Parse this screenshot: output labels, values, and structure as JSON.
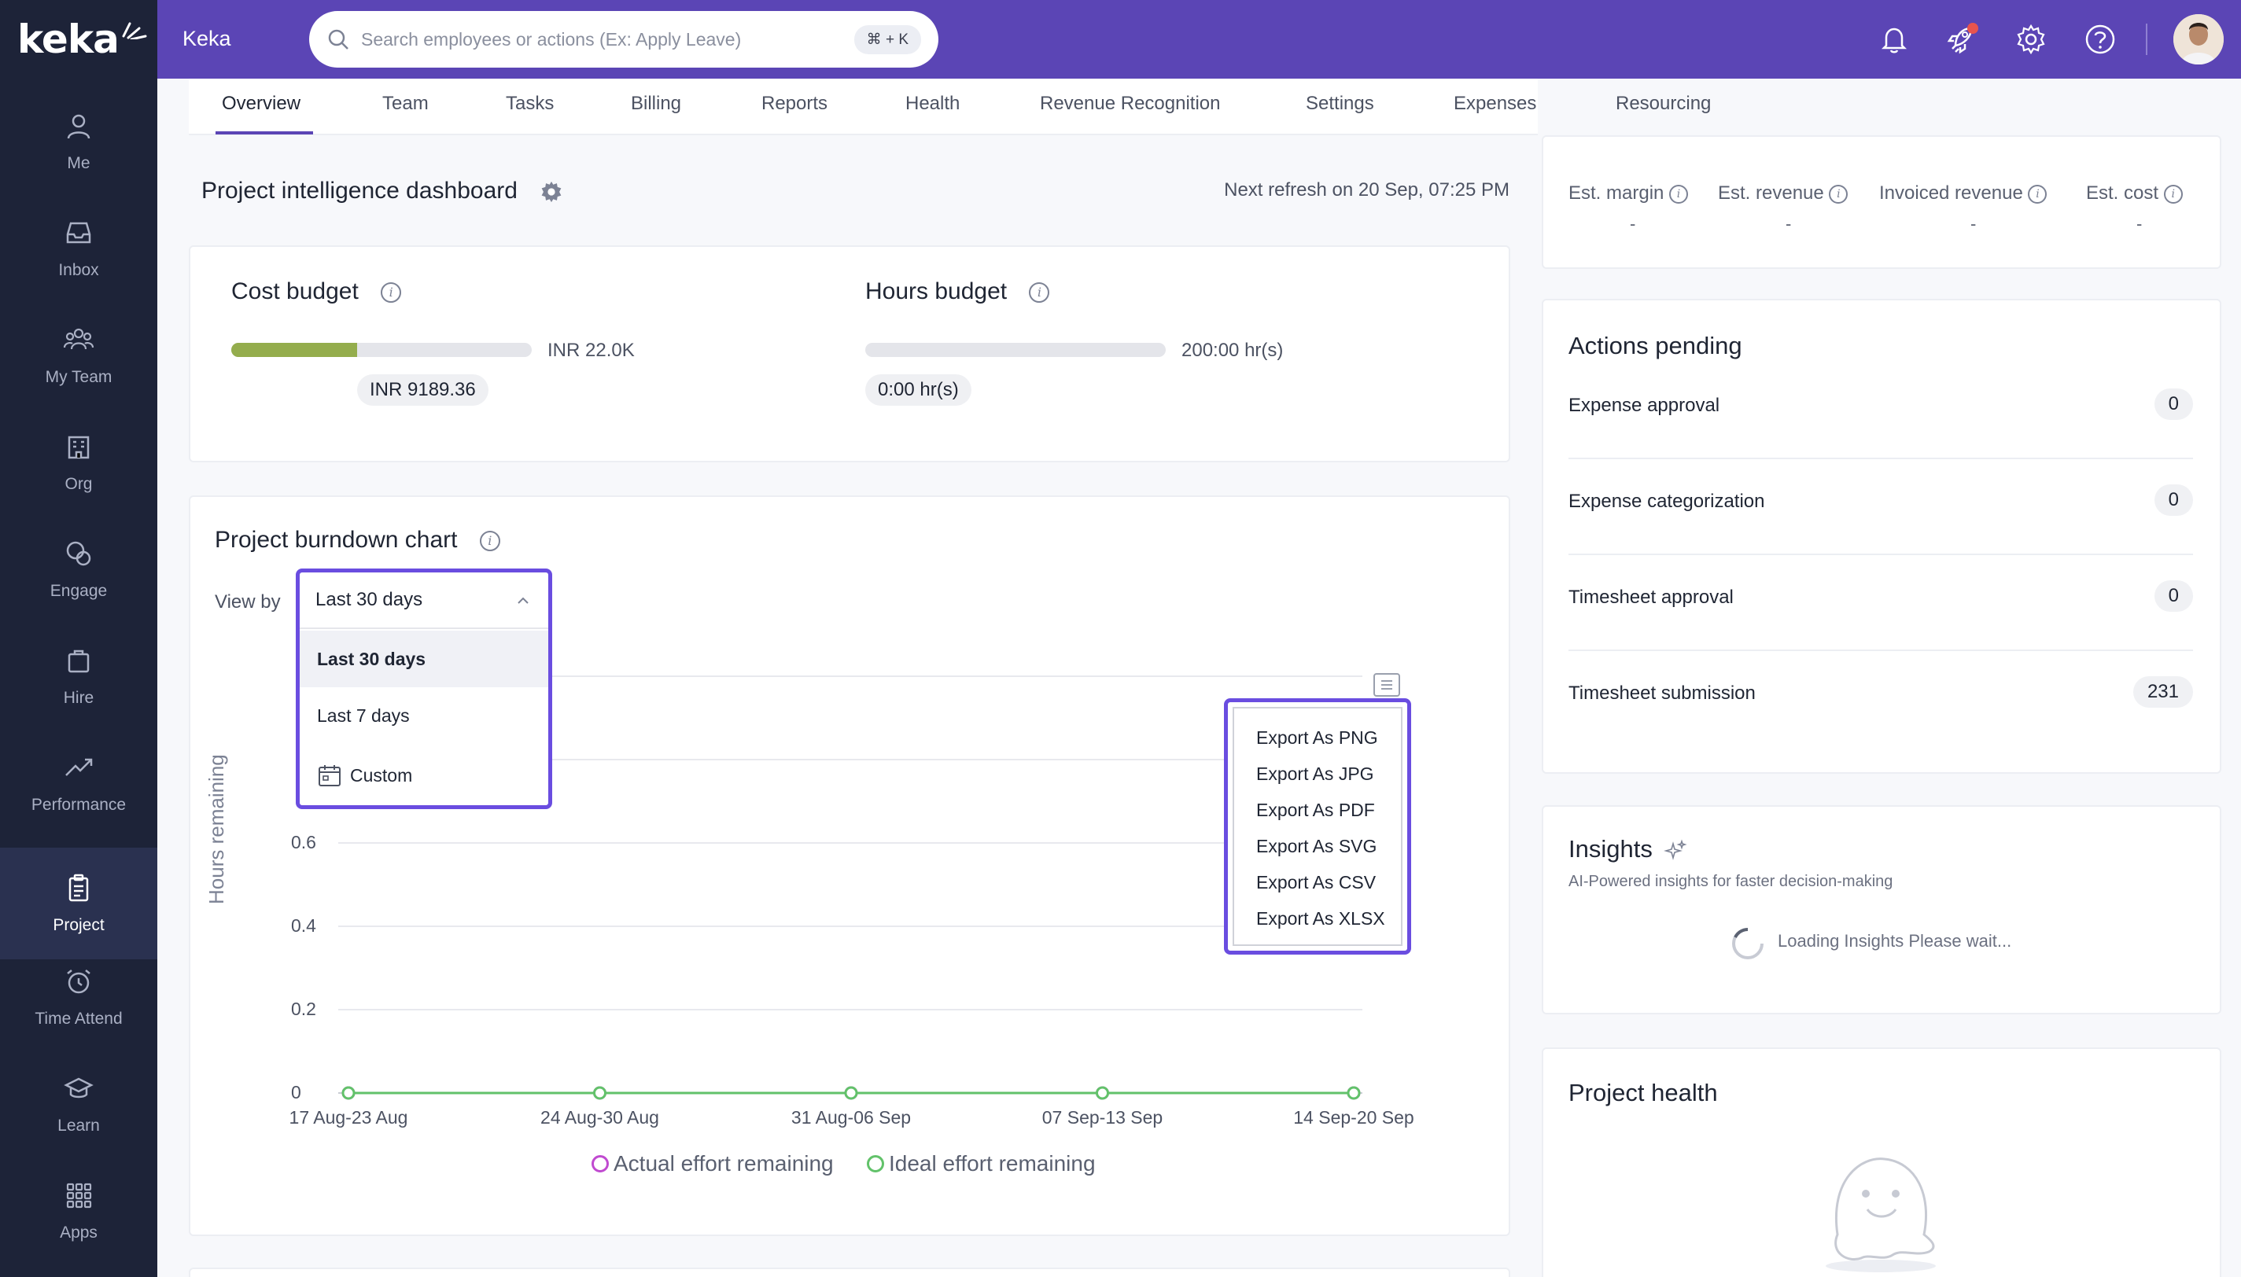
{
  "brand": {
    "logo_text": "keka",
    "company": "Keka",
    "accent": "#5b45b5"
  },
  "sidebar": {
    "items": [
      {
        "label": "Me"
      },
      {
        "label": "Inbox"
      },
      {
        "label": "My Team"
      },
      {
        "label": "Org"
      },
      {
        "label": "Engage"
      },
      {
        "label": "Hire"
      },
      {
        "label": "Performance"
      },
      {
        "label": "Project"
      },
      {
        "label": "Time Attend"
      },
      {
        "label": "Learn"
      },
      {
        "label": "Apps"
      }
    ],
    "active": "Project"
  },
  "search": {
    "placeholder": "Search employees or actions (Ex: Apply Leave)",
    "shortcut": "⌘ + K"
  },
  "tabs": [
    {
      "label": "Overview"
    },
    {
      "label": "Team"
    },
    {
      "label": "Tasks"
    },
    {
      "label": "Billing"
    },
    {
      "label": "Reports"
    },
    {
      "label": "Health"
    },
    {
      "label": "Revenue Recognition"
    },
    {
      "label": "Settings"
    },
    {
      "label": "Expenses"
    },
    {
      "label": "Resourcing"
    }
  ],
  "dashboard": {
    "title": "Project intelligence dashboard",
    "refresh": "Next refresh on 20 Sep, 07:25 PM"
  },
  "cost_budget": {
    "title": "Cost budget",
    "total": "INR 22.0K",
    "spent": "INR 9189.36",
    "progress": 0.42
  },
  "hours_budget": {
    "title": "Hours budget",
    "total": "200:00 hr(s)",
    "spent": "0:00 hr(s)",
    "progress": 0
  },
  "burndown": {
    "title": "Project burndown chart",
    "view_by_label": "View by",
    "selected": "Last 30 days",
    "options": [
      "Last 30 days",
      "Last 7 days",
      "Custom"
    ],
    "export_options": [
      "Export As PNG",
      "Export As JPG",
      "Export As PDF",
      "Export As SVG",
      "Export As CSV",
      "Export As XLSX"
    ]
  },
  "chart_data": {
    "type": "line",
    "title": "",
    "ylabel": "Hours remaining",
    "xlabel": "",
    "categories": [
      "17 Aug-23 Aug",
      "24 Aug-30 Aug",
      "31 Aug-06 Sep",
      "07 Sep-13 Sep",
      "14 Sep-20 Sep"
    ],
    "y_ticks": [
      "0",
      "0.2",
      "0.4",
      "0.6"
    ],
    "ylim": [
      0,
      1
    ],
    "series": [
      {
        "name": "Actual effort remaining",
        "color": "#c04ad0",
        "values": [
          0,
          0,
          0,
          0,
          0
        ]
      },
      {
        "name": "Ideal effort remaining",
        "color": "#62c26a",
        "values": [
          0,
          0,
          0,
          0,
          0
        ]
      }
    ],
    "legend": "bottom"
  },
  "metrics": [
    {
      "label": "Est. margin",
      "value": "-"
    },
    {
      "label": "Est. revenue",
      "value": "-"
    },
    {
      "label": "Invoiced revenue",
      "value": "-"
    },
    {
      "label": "Est. cost",
      "value": "-"
    }
  ],
  "actions_pending": {
    "title": "Actions pending",
    "rows": [
      {
        "label": "Expense approval",
        "count": "0"
      },
      {
        "label": "Expense categorization",
        "count": "0"
      },
      {
        "label": "Timesheet approval",
        "count": "0"
      },
      {
        "label": "Timesheet submission",
        "count": "231"
      }
    ]
  },
  "insights": {
    "title": "Insights",
    "subtitle": "AI-Powered insights for faster decision-making",
    "loading": "Loading Insights Please wait..."
  },
  "project_health": {
    "title": "Project health"
  }
}
